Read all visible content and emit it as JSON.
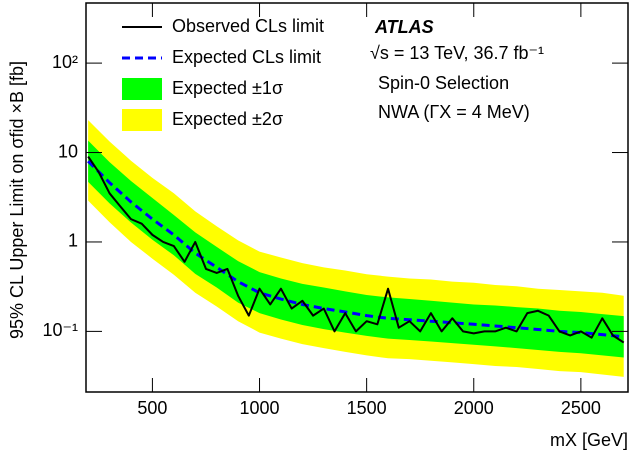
{
  "chart_data": {
    "type": "line",
    "x_label": "mX [GeV]",
    "y_label": "95% CL Upper Limit on σfid ×B [fb]",
    "log_y": true,
    "xlim": [
      190,
      2720
    ],
    "ylim": [
      0.021,
      470
    ],
    "xticks": [
      500,
      1000,
      1500,
      2000,
      2500
    ],
    "yticks": [
      {
        "value": 0.1,
        "label": "10⁻¹"
      },
      1,
      10,
      {
        "value": 100,
        "label": "10²"
      }
    ],
    "annotations": [
      "ATLAS",
      "√s = 13 TeV, 36.7 fb⁻¹",
      "Spin-0 Selection",
      "NWA (ΓX = 4 MeV)"
    ],
    "series": [
      {
        "name": "Observed CLs limit",
        "color": "#000000",
        "style": "solid",
        "x": [
          200,
          250,
          300,
          350,
          400,
          450,
          500,
          550,
          600,
          650,
          700,
          750,
          800,
          850,
          900,
          950,
          1000,
          1050,
          1100,
          1150,
          1200,
          1250,
          1300,
          1350,
          1400,
          1450,
          1500,
          1550,
          1600,
          1650,
          1700,
          1750,
          1800,
          1850,
          1900,
          1950,
          2000,
          2050,
          2100,
          2150,
          2200,
          2250,
          2300,
          2350,
          2400,
          2450,
          2500,
          2550,
          2600,
          2650,
          2700
        ],
        "values": [
          9,
          6,
          3.5,
          2.5,
          1.8,
          1.6,
          1.2,
          1.0,
          0.9,
          0.6,
          1.0,
          0.5,
          0.45,
          0.5,
          0.25,
          0.15,
          0.3,
          0.2,
          0.3,
          0.18,
          0.22,
          0.15,
          0.18,
          0.1,
          0.16,
          0.1,
          0.13,
          0.12,
          0.3,
          0.11,
          0.13,
          0.1,
          0.16,
          0.1,
          0.14,
          0.1,
          0.095,
          0.1,
          0.1,
          0.11,
          0.1,
          0.16,
          0.17,
          0.15,
          0.1,
          0.09,
          0.1,
          0.085,
          0.14,
          0.09,
          0.075
        ]
      },
      {
        "name": "Expected CLs limit",
        "color": "#0000ff",
        "style": "dashed",
        "x": [
          200,
          300,
          400,
          500,
          600,
          700,
          800,
          900,
          1000,
          1100,
          1200,
          1300,
          1400,
          1500,
          1600,
          1700,
          1800,
          1900,
          2000,
          2100,
          2200,
          2300,
          2400,
          2500,
          2600,
          2700
        ],
        "values": [
          8.0,
          4.6,
          2.8,
          1.8,
          1.2,
          0.75,
          0.52,
          0.36,
          0.27,
          0.23,
          0.2,
          0.18,
          0.165,
          0.15,
          0.14,
          0.135,
          0.13,
          0.125,
          0.12,
          0.115,
          0.11,
          0.105,
          0.1,
          0.097,
          0.092,
          0.087
        ]
      },
      {
        "name": "Expected ±1σ",
        "color": "#00ff00",
        "style": "band",
        "x": [
          200,
          300,
          400,
          500,
          600,
          700,
          800,
          900,
          1000,
          1100,
          1200,
          1300,
          1400,
          1500,
          1600,
          1700,
          1800,
          1900,
          2000,
          2100,
          2200,
          2300,
          2400,
          2500,
          2600,
          2700
        ],
        "low": [
          4.7,
          2.7,
          1.65,
          1.06,
          0.71,
          0.44,
          0.31,
          0.21,
          0.16,
          0.136,
          0.118,
          0.106,
          0.097,
          0.089,
          0.083,
          0.08,
          0.077,
          0.074,
          0.071,
          0.068,
          0.065,
          0.062,
          0.059,
          0.057,
          0.054,
          0.051
        ],
        "high": [
          13.6,
          7.8,
          4.8,
          3.1,
          2.0,
          1.28,
          0.88,
          0.61,
          0.46,
          0.39,
          0.34,
          0.31,
          0.28,
          0.255,
          0.24,
          0.23,
          0.22,
          0.21,
          0.2,
          0.195,
          0.187,
          0.18,
          0.17,
          0.165,
          0.156,
          0.148
        ]
      },
      {
        "name": "Expected ±2σ",
        "color": "#ffff00",
        "style": "band",
        "x": [
          200,
          300,
          400,
          500,
          600,
          700,
          800,
          900,
          1000,
          1100,
          1200,
          1300,
          1400,
          1500,
          1600,
          1700,
          1800,
          1900,
          2000,
          2100,
          2200,
          2300,
          2400,
          2500,
          2600,
          2700
        ],
        "low": [
          2.9,
          1.66,
          1.0,
          0.65,
          0.43,
          0.27,
          0.19,
          0.13,
          0.097,
          0.083,
          0.072,
          0.065,
          0.059,
          0.054,
          0.05,
          0.049,
          0.047,
          0.045,
          0.043,
          0.041,
          0.04,
          0.038,
          0.036,
          0.035,
          0.033,
          0.031
        ],
        "high": [
          23,
          13.3,
          8.1,
          5.2,
          3.5,
          2.2,
          1.5,
          1.04,
          0.78,
          0.67,
          0.58,
          0.52,
          0.48,
          0.435,
          0.41,
          0.39,
          0.38,
          0.36,
          0.35,
          0.33,
          0.32,
          0.3,
          0.29,
          0.28,
          0.27,
          0.25
        ]
      }
    ]
  }
}
